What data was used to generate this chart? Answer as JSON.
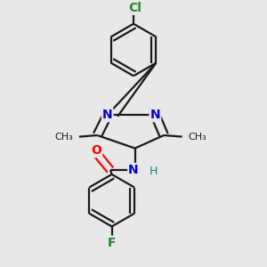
{
  "background_color": "#e8e8e8",
  "bond_color": "#1a1a1a",
  "atom_colors": {
    "N": "#0000dd",
    "O": "#ff0000",
    "F": "#228B22",
    "Cl": "#228B22",
    "H": "#008080",
    "C": "#1a1a1a"
  },
  "figsize": [
    3.0,
    3.0
  ],
  "dpi": 100
}
